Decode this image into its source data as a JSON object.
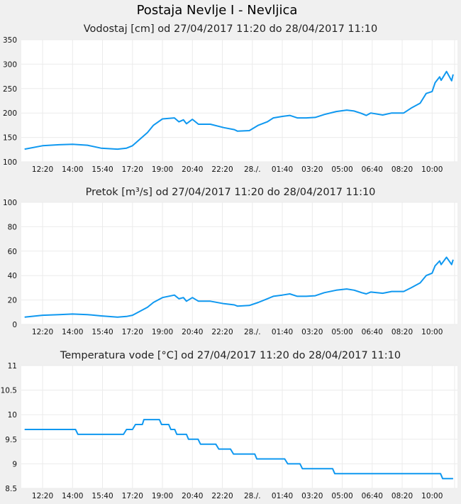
{
  "title": "Postaja Nevlje I - Nevljica",
  "x_tick_labels": [
    "12:20",
    "14:00",
    "15:40",
    "17:20",
    "19:00",
    "20:40",
    "22:20",
    "28./.",
    "01:40",
    "03:20",
    "05:00",
    "06:40",
    "08:20",
    "10:00"
  ],
  "chart_data": [
    {
      "type": "line",
      "title": "Vodostaj [cm] od 27/04/2017 11:20 do 28/04/2017 11:10",
      "xlabel": "",
      "ylabel": "",
      "x_unit": "minutes since 27/04/2017 11:20",
      "xlim": [
        0,
        1430
      ],
      "x_ticks": [
        60,
        160,
        260,
        360,
        460,
        560,
        660,
        760,
        860,
        960,
        1060,
        1160,
        1260,
        1360
      ],
      "ylim": [
        100,
        350
      ],
      "y_ticks": [
        "100",
        "150",
        "200",
        "250",
        "300",
        "350"
      ],
      "grid": true,
      "color": "#0f98f0",
      "x": [
        0,
        60,
        115,
        160,
        210,
        255,
        310,
        340,
        360,
        410,
        430,
        460,
        500,
        515,
        530,
        540,
        560,
        580,
        620,
        665,
        700,
        710,
        750,
        780,
        810,
        830,
        860,
        885,
        910,
        940,
        970,
        1000,
        1040,
        1075,
        1100,
        1125,
        1140,
        1155,
        1195,
        1225,
        1265,
        1290,
        1320,
        1340,
        1360,
        1370,
        1385,
        1390,
        1408,
        1425,
        1430
      ],
      "values": [
        126,
        133,
        135,
        136,
        134,
        128,
        126,
        128,
        133,
        160,
        175,
        188,
        190,
        182,
        186,
        178,
        187,
        177,
        177,
        170,
        166,
        163,
        164,
        175,
        182,
        190,
        193,
        195,
        190,
        190,
        191,
        197,
        203,
        206,
        204,
        199,
        195,
        200,
        196,
        200,
        200,
        210,
        220,
        240,
        244,
        262,
        274,
        267,
        285,
        266,
        279
      ]
    },
    {
      "type": "line",
      "title": "Pretok [m³/s] od 27/04/2017 11:20 do 28/04/2017 11:10",
      "xlabel": "",
      "ylabel": "",
      "x_unit": "minutes since 27/04/2017 11:20",
      "xlim": [
        0,
        1430
      ],
      "x_ticks": [
        60,
        160,
        260,
        360,
        460,
        560,
        660,
        760,
        860,
        960,
        1060,
        1160,
        1260,
        1360
      ],
      "ylim": [
        0,
        100
      ],
      "y_ticks": [
        "0",
        "20",
        "40",
        "60",
        "80",
        "100"
      ],
      "grid": true,
      "color": "#0f98f0",
      "x": [
        0,
        60,
        115,
        160,
        210,
        255,
        310,
        340,
        360,
        410,
        430,
        460,
        500,
        515,
        530,
        540,
        560,
        580,
        620,
        665,
        700,
        710,
        750,
        780,
        810,
        830,
        860,
        885,
        910,
        940,
        970,
        1000,
        1040,
        1075,
        1100,
        1125,
        1140,
        1155,
        1195,
        1225,
        1265,
        1290,
        1320,
        1340,
        1360,
        1370,
        1385,
        1390,
        1408,
        1425,
        1430
      ],
      "values": [
        6,
        7.5,
        8,
        8.5,
        8,
        7,
        6,
        6.5,
        7.5,
        14,
        18,
        22,
        24,
        21,
        22,
        19,
        22,
        19,
        19,
        17,
        16,
        15,
        15.5,
        18,
        21,
        23,
        24,
        25,
        23,
        23,
        23.5,
        26,
        28,
        29,
        28,
        26,
        25,
        26.5,
        25.5,
        27,
        27,
        30,
        34,
        40,
        42,
        48,
        52,
        49,
        55,
        49,
        53
      ]
    },
    {
      "type": "line",
      "title": "Temperatura vode [°C] od 27/04/2017 11:20 do 28/04/2017 11:10",
      "xlabel": "",
      "ylabel": "",
      "x_unit": "minutes since 27/04/2017 11:20",
      "xlim": [
        0,
        1430
      ],
      "x_ticks": [
        60,
        160,
        260,
        360,
        460,
        560,
        660,
        760,
        860,
        960,
        1060,
        1160,
        1260,
        1360
      ],
      "ylim": [
        8.5,
        11
      ],
      "y_ticks": [
        "8.5",
        "9",
        "9.5",
        "10",
        "10.5",
        "11"
      ],
      "grid": true,
      "color": "#0f98f0",
      "x": [
        0,
        170,
        178,
        330,
        340,
        360,
        370,
        393,
        398,
        450,
        457,
        481,
        488,
        501,
        508,
        540,
        547,
        579,
        587,
        638,
        648,
        687,
        697,
        768,
        775,
        868,
        878,
        919,
        927,
        1028,
        1035,
        1388,
        1395,
        1430
      ],
      "values": [
        9.7,
        9.7,
        9.6,
        9.6,
        9.7,
        9.7,
        9.8,
        9.8,
        9.9,
        9.9,
        9.8,
        9.8,
        9.7,
        9.7,
        9.6,
        9.6,
        9.5,
        9.5,
        9.4,
        9.4,
        9.3,
        9.3,
        9.2,
        9.2,
        9.1,
        9.1,
        9.0,
        9.0,
        8.9,
        8.9,
        8.8,
        8.8,
        8.7,
        8.7
      ]
    }
  ]
}
